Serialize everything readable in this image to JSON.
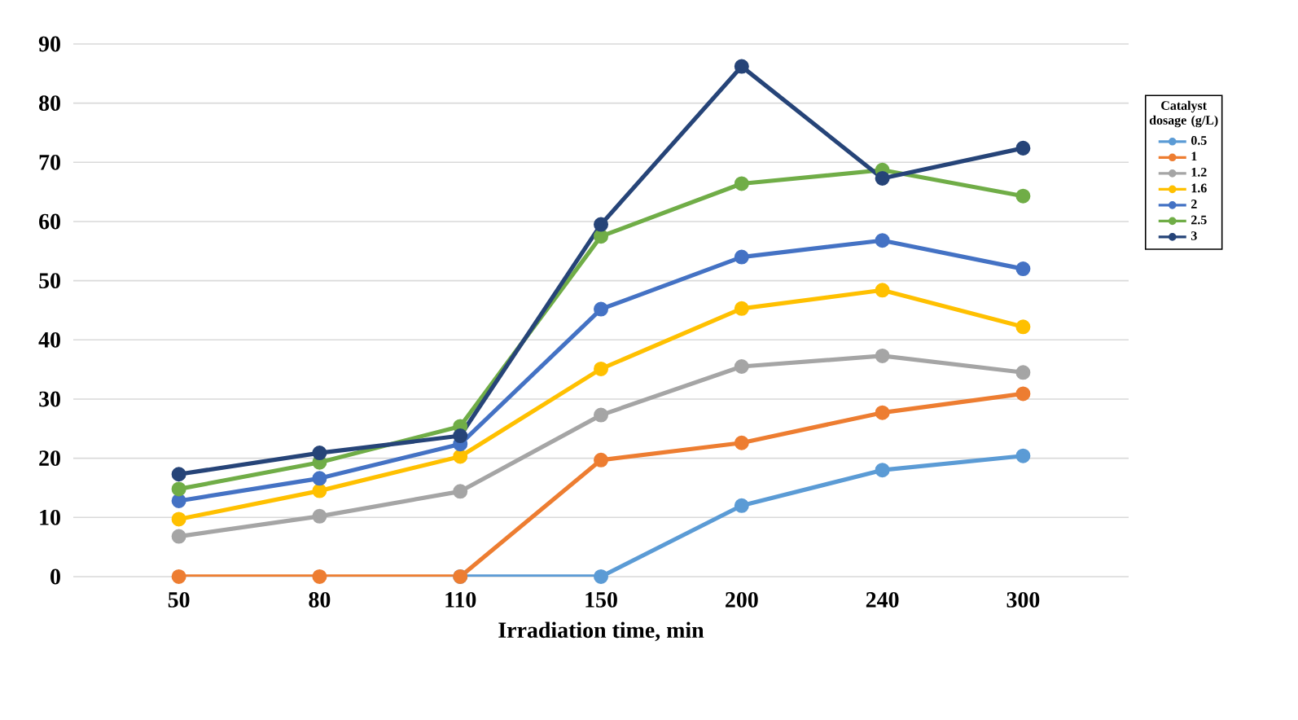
{
  "chart_data": {
    "type": "line",
    "xlabel": "Irradiation time, min",
    "legend_title": "Catalyst dosage (g/L)",
    "categories": [
      "50",
      "80",
      "110",
      "150",
      "200",
      "240",
      "300"
    ],
    "series": [
      {
        "name": "0.5",
        "color": "#5b9bd5",
        "values": [
          null,
          null,
          0,
          0,
          12,
          18,
          20.4
        ]
      },
      {
        "name": "1",
        "color": "#ed7d31",
        "values": [
          0,
          0,
          0,
          19.7,
          22.6,
          27.7,
          30.9
        ]
      },
      {
        "name": "1.2",
        "color": "#a5a5a5",
        "values": [
          6.8,
          10.2,
          14.4,
          27.3,
          35.5,
          37.3,
          34.5
        ]
      },
      {
        "name": "1.6",
        "color": "#ffc000",
        "values": [
          9.7,
          14.5,
          20.3,
          35.1,
          45.3,
          48.4,
          42.2
        ]
      },
      {
        "name": "2",
        "color": "#4472c4",
        "values": [
          12.8,
          16.6,
          22.4,
          45.2,
          54,
          56.8,
          52
        ]
      },
      {
        "name": "2.5",
        "color": "#70ad47",
        "values": [
          14.8,
          19.3,
          25.4,
          57.5,
          66.4,
          68.7,
          64.3
        ]
      },
      {
        "name": "3",
        "color": "#264478",
        "values": [
          17.3,
          20.9,
          23.8,
          59.5,
          86.2,
          67.3,
          72.4
        ]
      }
    ],
    "ylim": [
      0,
      90
    ],
    "yticks": [
      0,
      10,
      20,
      30,
      40,
      50,
      60,
      70,
      80,
      90
    ],
    "grid": "y",
    "legend": "right",
    "marker": "circle",
    "line_style": "solid"
  }
}
